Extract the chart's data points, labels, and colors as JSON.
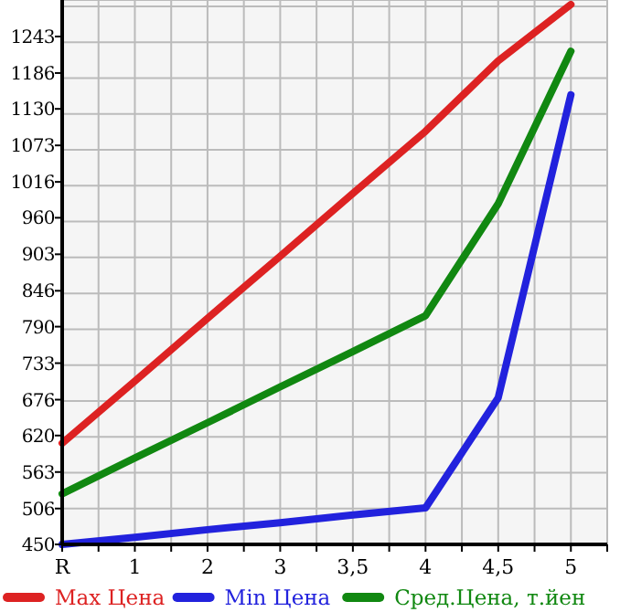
{
  "chart_data": {
    "type": "line",
    "categories": [
      "R",
      "1",
      "2",
      "3",
      "3,5",
      "4",
      "4,5",
      "5"
    ],
    "series": [
      {
        "name": "Max Цена",
        "color": "#dd2222",
        "values": [
          608,
          705,
          803,
          900,
          998,
          1095,
          1205,
          1293
        ]
      },
      {
        "name": "Min Цена",
        "color": "#2222dd",
        "values": [
          450,
          461,
          473,
          484,
          496,
          507,
          679,
          1152
        ]
      },
      {
        "name": "Сред.Цена, т.йен",
        "color": "#118811",
        "values": [
          529,
          585,
          640,
          696,
          751,
          807,
          982,
          1220
        ]
      }
    ],
    "ylim": [
      450,
      1300
    ],
    "yticks": [
      450,
      506,
      563,
      620,
      676,
      733,
      790,
      846,
      903,
      960,
      1016,
      1073,
      1130,
      1186,
      1243
    ],
    "grid": true,
    "legend": "bottom",
    "marker": "none",
    "line_style": "solid"
  }
}
